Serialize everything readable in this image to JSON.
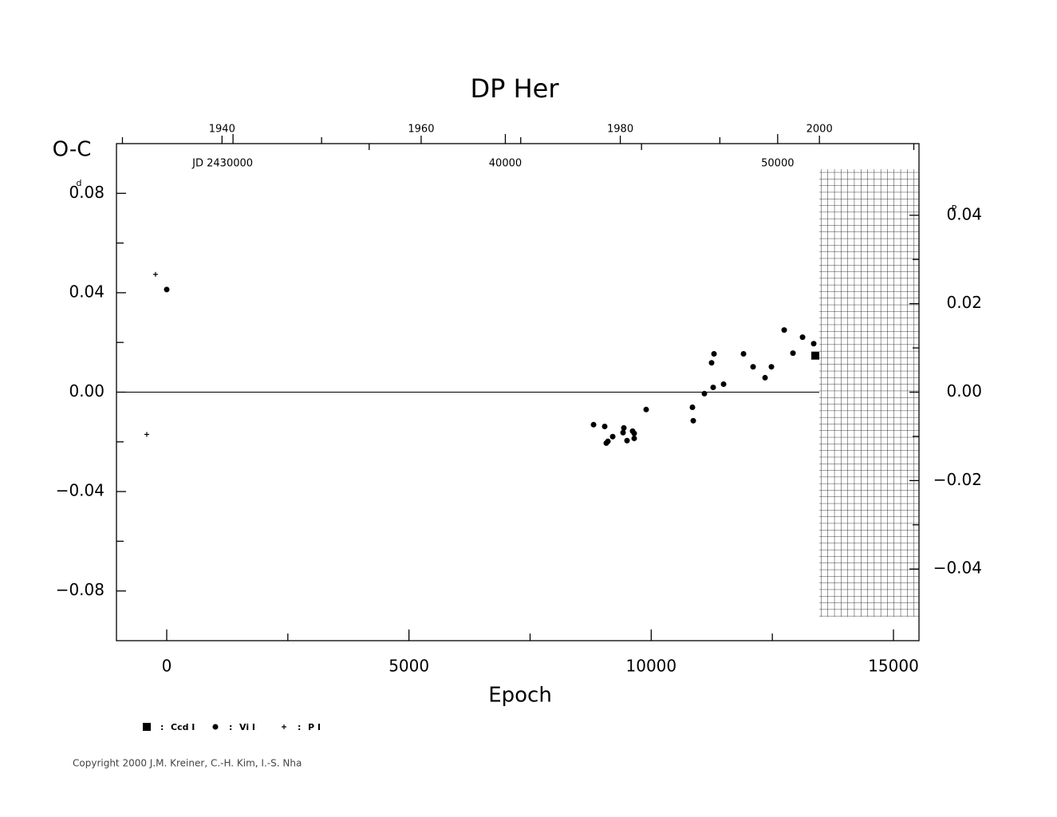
{
  "chart_data": {
    "type": "scatter",
    "title": "DP Her",
    "y_label": "O-C",
    "y_unit": "d",
    "y2_unit": "P",
    "x_label": "Epoch",
    "xlim": [
      -1037,
      15527
    ],
    "xticks": [
      0,
      5000,
      10000,
      15000
    ],
    "xminor_ticks": [
      2500,
      7500,
      12500
    ],
    "ylim": [
      -0.1,
      0.1
    ],
    "yticks": [
      {
        "value": -0.08,
        "label": "−0.08"
      },
      {
        "value": -0.04,
        "label": "−0.04"
      },
      {
        "value": 0,
        "label": "0.00"
      },
      0.04,
      0.08
    ],
    "yminor_ticks": [
      -0.06,
      -0.02,
      0.02,
      0.06
    ],
    "y2lim": [
      -0.0562,
      0.0562
    ],
    "y2ticks": [
      {
        "value": -0.04,
        "label": "−0.04"
      },
      {
        "value": -0.02,
        "label": "−0.02"
      },
      {
        "value": 0,
        "label": "0.00"
      },
      0.02,
      0.04
    ],
    "y2minor_ticks": [
      -0.03,
      -0.01,
      0.01,
      0.03
    ],
    "year_axis": {
      "lim": [
        1929.4,
        2010
      ],
      "ticks": [
        1940,
        1960,
        1980,
        2000
      ],
      "minor_ticks": [
        1930,
        1950,
        1970,
        1990
      ]
    },
    "jd_axis": {
      "lim": [
        25720,
        55190
      ],
      "ticks": [
        {
          "value": 30000,
          "label": "JD 2430000"
        },
        {
          "value": 40000,
          "label": "40000"
        },
        {
          "value": 50000,
          "label": "50000"
        }
      ],
      "minor_ticks": [
        35000,
        45000,
        55000
      ]
    },
    "legend_separator": ":",
    "series": [
      {
        "name": "Ccd I",
        "marker": "square",
        "color": "#000000",
        "x": [
          13387
        ],
        "values": [
          0.0147
        ]
      },
      {
        "name": "Vi I",
        "marker": "circle",
        "color": "#000000",
        "x": [
          0,
          8810,
          9040,
          9073,
          9106,
          9205,
          9419,
          9435,
          9501,
          9616,
          9649,
          9649,
          9896,
          10851,
          10868,
          11098,
          11246,
          11279,
          11296,
          11494,
          11905,
          12103,
          12350,
          12481,
          12745,
          12926,
          13124,
          13354
        ],
        "values": [
          0.0413,
          -0.0131,
          -0.0138,
          -0.0205,
          -0.0198,
          -0.0179,
          -0.0163,
          -0.0144,
          -0.0195,
          -0.0157,
          -0.0166,
          -0.0186,
          -0.007,
          -0.0061,
          -0.0115,
          -0.0006,
          0.0118,
          0.0019,
          0.0154,
          0.0032,
          0.0154,
          0.0102,
          0.0058,
          0.0102,
          0.025,
          0.0157,
          0.0221,
          0.0195
        ]
      },
      {
        "name": "P I",
        "marker": "plus",
        "color": "#000000",
        "x": [
          -231,
          -412
        ],
        "values": [
          0.0474,
          -0.017
        ]
      }
    ]
  },
  "footer": "Copyright 2000 J.M. Kreiner, C.-H. Kim, I.-S. Nha"
}
